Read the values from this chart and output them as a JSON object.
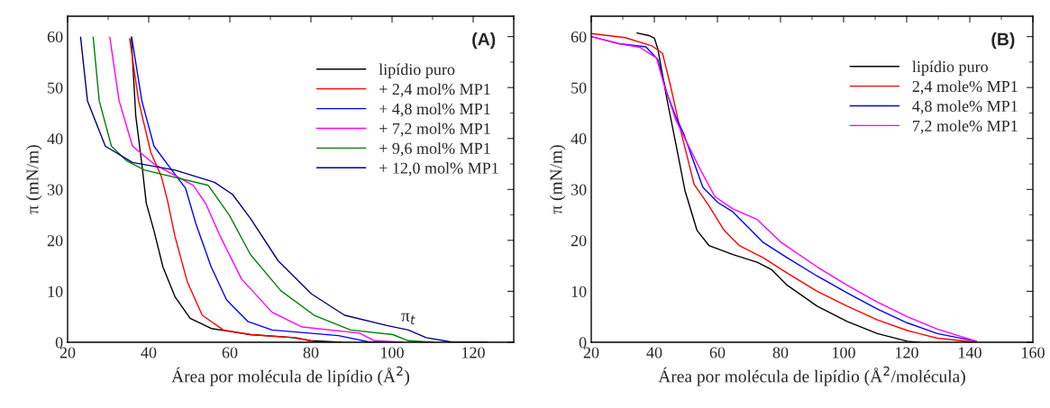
{
  "chart_data": [
    {
      "type": "line",
      "xlabel": "Área por molécula de lipídio (Å$^{2}$)",
      "ylabel": "π (mN/m)",
      "xlim": [
        20,
        130
      ],
      "xticks": [
        20,
        40,
        60,
        80,
        100,
        120
      ],
      "ylim": [
        0,
        64
      ],
      "yticks": [
        0,
        10,
        20,
        30,
        40,
        50,
        60
      ],
      "legend": "top right",
      "grid": false,
      "annotations": [
        "(A)",
        {
          "text": "π$_{t}$",
          "x": 104,
          "y": 2.4
        }
      ],
      "series": [
        {
          "name": "lipídio puro",
          "color": "#000000",
          "x": [
            35.7,
            36.8,
            38.3,
            39.4,
            41.3,
            43.5,
            46.5,
            50.2,
            55.4,
            65.1,
            75.6,
            80,
            87.5
          ],
          "values": [
            59.9,
            44.5,
            35,
            27.3,
            21.9,
            14.8,
            8.9,
            4.7,
            2.7,
            1.5,
            0.9,
            0.3,
            0
          ]
        },
        {
          "name": "+ 2,4 mol% MP1",
          "color": "#ff0000",
          "x": [
            35.3,
            37.5,
            40.5,
            43.1,
            44.6,
            46.5,
            49.5,
            53.2,
            58.4,
            65.1,
            76.3,
            80.8,
            87.5
          ],
          "values": [
            59.6,
            47.4,
            37.3,
            32.6,
            27.9,
            20.7,
            11.9,
            5.3,
            2.4,
            1.5,
            0.9,
            0.1,
            0
          ]
        },
        {
          "name": "+ 4,8 mol% MP1",
          "color": "#0000ff",
          "x": [
            35.8,
            38.3,
            41.3,
            45.7,
            49.1,
            51.7,
            55.4,
            59.2,
            64.4,
            70.4,
            86.8,
            94.1,
            98.7
          ],
          "values": [
            59.9,
            47.4,
            38.5,
            33.8,
            30.2,
            23.1,
            14.8,
            8.3,
            4.1,
            2.4,
            1.3,
            0.1,
            0
          ]
        },
        {
          "name": "+ 7,2 mol% MP1",
          "color": "#ff00ff",
          "x": [
            30.4,
            32.7,
            36,
            41.3,
            51,
            54,
            57.7,
            62.9,
            70.4,
            77.8,
            92,
            95.7,
            102.5
          ],
          "values": [
            59.9,
            47.4,
            38.5,
            35,
            30.8,
            27.3,
            20.7,
            12.4,
            5.9,
            3,
            1.8,
            0.3,
            0
          ]
        },
        {
          "name": "+ 9,6 mol% MP1",
          "color": "#008000",
          "x": [
            26.3,
            27.8,
            30.8,
            34.6,
            39,
            54.7,
            59.9,
            65.1,
            72.6,
            80.8,
            89.8,
            100.2,
            104,
            110
          ],
          "values": [
            59.9,
            47.4,
            38.5,
            35.6,
            33.8,
            30.8,
            24.9,
            17.2,
            10.1,
            5.3,
            2.4,
            1.5,
            0.3,
            0
          ]
        },
        {
          "name": "+ 12,0 mol% MP1",
          "color": "#000080",
          "x": [
            23.2,
            24.9,
            29.3,
            36,
            46.5,
            56.2,
            60.7,
            65.1,
            71.9,
            80.1,
            88.3,
            98.7,
            104,
            108.4,
            115,
            123.4
          ],
          "values": [
            59.9,
            47.4,
            38.5,
            35.3,
            33.8,
            31.4,
            29,
            24.3,
            16,
            9.5,
            5.3,
            3.3,
            2.4,
            0.9,
            0,
            0
          ]
        }
      ]
    },
    {
      "type": "line",
      "xlabel": "Área por molécula de lipídio (Å$^{2}$/molécula)",
      "ylabel": "π (mN/m)",
      "xlim": [
        20,
        160
      ],
      "xticks": [
        20,
        40,
        60,
        80,
        100,
        120,
        140,
        160
      ],
      "ylim": [
        0,
        64
      ],
      "yticks": [
        0,
        10,
        20,
        30,
        40,
        50,
        60
      ],
      "legend": "right",
      "grid": false,
      "annotations": [
        "(B)"
      ],
      "series": [
        {
          "name": "lipídio puro",
          "color": "#000000",
          "x": [
            34.5,
            38.3,
            40,
            41.1,
            44,
            46.9,
            49.7,
            53.5,
            57.3,
            64.9,
            72.6,
            77.3,
            82.1,
            91.6,
            101.1,
            110.7,
            120.2,
            124
          ],
          "values": [
            60.7,
            60.2,
            59.7,
            57.6,
            47.7,
            38.7,
            29.8,
            22,
            19,
            17.2,
            15.7,
            14.2,
            11.2,
            7.1,
            4.1,
            1.7,
            0.2,
            0
          ]
        },
        {
          "name": "2,4 mole% MP1",
          "color": "#ff0000",
          "x": [
            20,
            30.7,
            39.2,
            42.6,
            45,
            47.8,
            52.6,
            57.3,
            62.1,
            66.9,
            74.5,
            82.1,
            91.6,
            101.1,
            110.7,
            120.2,
            129.7,
            142.1
          ],
          "values": [
            60.6,
            59.8,
            58.2,
            56.7,
            50.7,
            42.9,
            31,
            26.8,
            22,
            19,
            16.6,
            13.6,
            10,
            7.1,
            4.4,
            2.3,
            0.8,
            0
          ]
        },
        {
          "name": "4,8 mole% MP1",
          "color": "#0000ff",
          "x": [
            20,
            28.8,
            37.3,
            41.1,
            44,
            46.9,
            49.2,
            55.4,
            60.2,
            64.9,
            74.5,
            82.1,
            91.6,
            101.1,
            110.7,
            120.2,
            129.7,
            142.1
          ],
          "values": [
            60,
            58.6,
            58,
            55.5,
            48.9,
            44.1,
            41.1,
            30.4,
            27.4,
            25.6,
            19.6,
            16.6,
            13,
            9.7,
            6.5,
            3.8,
            1.7,
            0.2
          ]
        },
        {
          "name": "7,2 mole% MP1",
          "color": "#ff00ff",
          "x": [
            20,
            28.8,
            35.4,
            40.7,
            43,
            46.9,
            54.5,
            59.2,
            64.9,
            72.6,
            80.2,
            91.6,
            101.1,
            110.7,
            120.2,
            129.7,
            142.1
          ],
          "values": [
            60,
            58.6,
            57.9,
            55.8,
            50.7,
            43.5,
            34,
            28.6,
            26.2,
            24.1,
            19.6,
            14.8,
            11.2,
            7.9,
            5,
            2.6,
            0.2
          ]
        }
      ]
    }
  ]
}
